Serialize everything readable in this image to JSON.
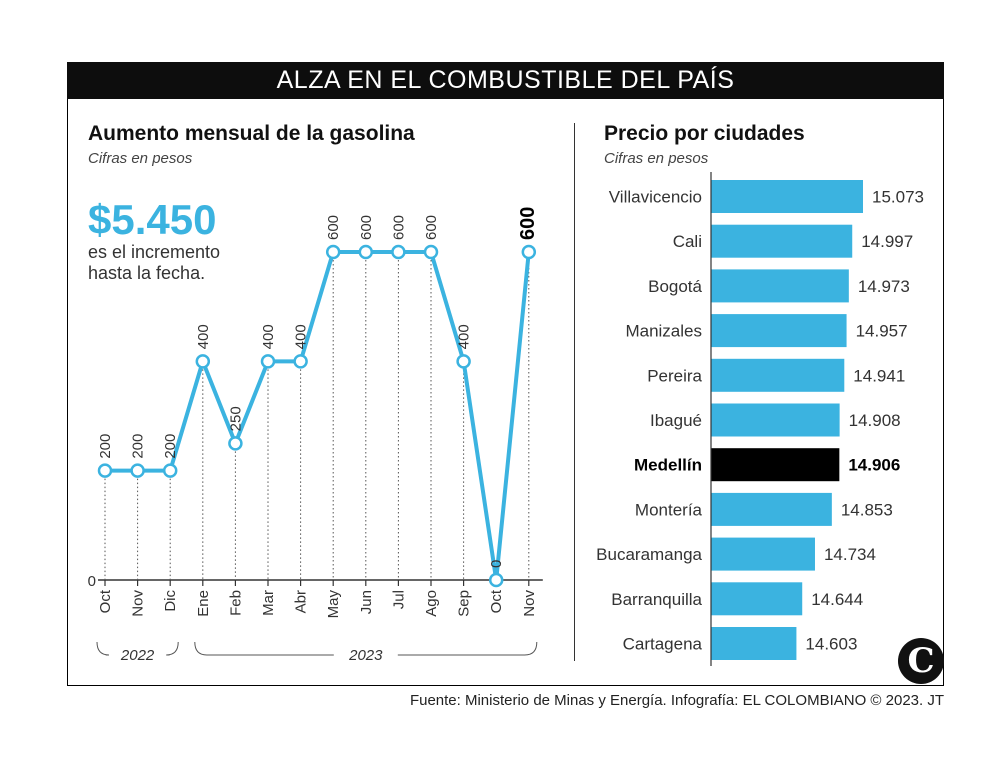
{
  "header": {
    "title": "ALZA EN EL COMBUSTIBLE DEL PAÍS"
  },
  "left_panel": {
    "title": "Aumento mensual de la gasolina",
    "subtitle": "Cifras en pesos",
    "highlight_value": "$5.450",
    "highlight_caption": "es el incremento hasta la fecha."
  },
  "right_panel": {
    "title": "Precio por ciudades",
    "subtitle": "Cifras en pesos"
  },
  "footer": {
    "source": "Fuente: Ministerio de Minas y Energía. Infografía: EL COLOMBIANO © 2023. JT"
  },
  "logo": {
    "letter": "C"
  },
  "colors": {
    "accent": "#3bb3e0",
    "highlight": "#000000",
    "header_bg": "#0d0d0d"
  },
  "chart_data": [
    {
      "type": "line",
      "categories": [
        "Oct",
        "Nov",
        "Dic",
        "Ene",
        "Feb",
        "Mar",
        "Abr",
        "May",
        "Jun",
        "Jul",
        "Ago",
        "Sep",
        "Oct",
        "Nov"
      ],
      "values": [
        200,
        200,
        200,
        400,
        250,
        400,
        400,
        600,
        600,
        600,
        600,
        400,
        0,
        600
      ],
      "value_labels": [
        "200",
        "200",
        "200",
        "400",
        "250",
        "400",
        "400",
        "600",
        "600",
        "600",
        "600",
        "400",
        "0",
        "600"
      ],
      "emphasized_index": 13,
      "y_tick_label": "0",
      "ylim": [
        0,
        600
      ],
      "year_groups": [
        {
          "label": "2022",
          "start": 0,
          "end": 2
        },
        {
          "label": "2023",
          "start": 3,
          "end": 13
        }
      ],
      "grid": false
    },
    {
      "type": "bar",
      "orientation": "horizontal",
      "categories": [
        "Villavicencio",
        "Cali",
        "Bogotá",
        "Manizales",
        "Pereira",
        "Ibagué",
        "Medellín",
        "Montería",
        "Bucaramanga",
        "Barranquilla",
        "Cartagena"
      ],
      "values": [
        15073,
        14997,
        14973,
        14957,
        14941,
        14908,
        14906,
        14853,
        14734,
        14644,
        14603
      ],
      "value_labels": [
        "15.073",
        "14.997",
        "14.973",
        "14.957",
        "14.941",
        "14.908",
        "14.906",
        "14.853",
        "14.734",
        "14.644",
        "14.603"
      ],
      "highlighted": "Medellín",
      "grid": false
    }
  ]
}
